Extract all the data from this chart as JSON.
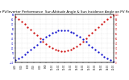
{
  "title": "Solar PV/Inverter Performance  Sun Altitude Angle & Sun Incidence Angle on PV Panels",
  "title_fontsize": 3.0,
  "background_color": "#ffffff",
  "grid_color": "#aaaaaa",
  "x_tick_labels": [
    "4:00",
    "5:00",
    "6:00",
    "7:00",
    "8:00",
    "9:00",
    "10:00",
    "11:00",
    "12:00",
    "13:00",
    "14:00",
    "15:00",
    "16:00",
    "17:00",
    "18:00",
    "19:00",
    "20:00"
  ],
  "ylim_left": [
    -10,
    90
  ],
  "ylim_right": [
    0,
    100
  ],
  "y_ticks_left": [
    -10,
    0,
    10,
    20,
    30,
    40,
    50,
    60,
    70,
    80,
    90
  ],
  "y_ticks_right": [
    0,
    10,
    20,
    30,
    40,
    50,
    60,
    70,
    80,
    90,
    100
  ],
  "sun_altitude_x": [
    4,
    4.5,
    5,
    5.5,
    6,
    6.5,
    7,
    7.5,
    8,
    8.5,
    9,
    9.5,
    10,
    10.5,
    11,
    11.5,
    12,
    12.5,
    13,
    13.5,
    14,
    14.5,
    15,
    15.5,
    16,
    16.5,
    17,
    17.5,
    18,
    18.5,
    19,
    19.5,
    20
  ],
  "sun_altitude_y": [
    -5,
    -2,
    2,
    6,
    11,
    16,
    22,
    27,
    33,
    38,
    43,
    47,
    51,
    54,
    56,
    57,
    57,
    56,
    54,
    51,
    47,
    43,
    38,
    33,
    27,
    22,
    16,
    11,
    6,
    2,
    -2,
    -5,
    -8
  ],
  "sun_incidence_x": [
    4,
    4.5,
    5,
    5.5,
    6,
    6.5,
    7,
    7.5,
    8,
    8.5,
    9,
    9.5,
    10,
    10.5,
    11,
    11.5,
    12,
    12.5,
    13,
    13.5,
    14,
    14.5,
    15,
    15.5,
    16,
    16.5,
    17,
    17.5,
    18,
    18.5,
    19,
    19.5,
    20
  ],
  "sun_incidence_y": [
    95,
    90,
    85,
    80,
    74,
    68,
    62,
    56,
    50,
    44,
    39,
    34,
    30,
    27,
    25,
    24,
    24,
    25,
    27,
    30,
    34,
    39,
    44,
    50,
    56,
    62,
    68,
    74,
    80,
    85,
    90,
    95,
    98
  ],
  "altitude_color": "#0000cc",
  "incidence_color": "#cc0000",
  "marker_size": 1.2,
  "xlim": [
    4,
    20
  ],
  "x_ticks": [
    4,
    5,
    6,
    7,
    8,
    9,
    10,
    11,
    12,
    13,
    14,
    15,
    16,
    17,
    18,
    19,
    20
  ]
}
